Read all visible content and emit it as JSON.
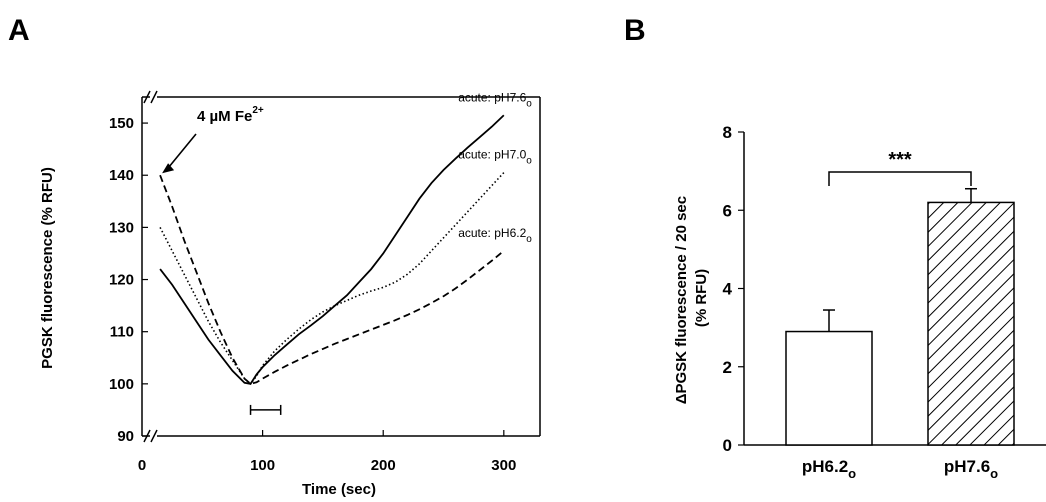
{
  "chart_data": [
    {
      "panel": "A",
      "type": "line",
      "xlabel": "Time (sec)",
      "ylabel": "PGSK fluorescence (% RFU)",
      "xticks": [
        0,
        100,
        200,
        300
      ],
      "yticks": [
        90,
        100,
        110,
        120,
        130,
        140,
        150
      ],
      "xlim": [
        0,
        330
      ],
      "ylim": [
        90,
        155
      ],
      "axis_break": true,
      "annotation": {
        "text": "4 µM Fe",
        "superscript": "2+"
      },
      "series": [
        {
          "label": "acute: pH7.6",
          "subscript": "o",
          "style": "solid",
          "x": [
            15,
            25,
            35,
            45,
            55,
            65,
            75,
            85,
            90,
            95,
            100,
            110,
            120,
            130,
            140,
            150,
            160,
            170,
            180,
            190,
            200,
            210,
            220,
            230,
            240,
            250,
            260,
            270,
            280,
            290,
            300
          ],
          "y": [
            122,
            119,
            115.5,
            112,
            108.5,
            105.5,
            102.5,
            100.2,
            100,
            101.8,
            103.2,
            105.5,
            107.5,
            109.5,
            111.2,
            113.0,
            115.0,
            117.0,
            119.5,
            122.0,
            125.0,
            128.5,
            132.0,
            135.5,
            138.5,
            141.0,
            143.2,
            145.3,
            147.3,
            149.3,
            151.5
          ]
        },
        {
          "label": "acute: pH7.0",
          "subscript": "o",
          "style": "dotted",
          "x": [
            15,
            25,
            35,
            45,
            55,
            65,
            75,
            85,
            90,
            95,
            100,
            110,
            120,
            130,
            140,
            150,
            160,
            170,
            180,
            190,
            200,
            210,
            220,
            230,
            240,
            250,
            260,
            270,
            280,
            290,
            300
          ],
          "y": [
            130,
            125.5,
            121,
            116.5,
            112,
            108,
            104.5,
            101,
            100,
            101.5,
            103.5,
            106.3,
            108.5,
            110.5,
            112.3,
            113.8,
            115.0,
            116.0,
            117.0,
            117.8,
            118.5,
            119.5,
            121.0,
            123.0,
            125.5,
            128.0,
            130.5,
            133.0,
            135.5,
            138.0,
            140.5
          ]
        },
        {
          "label": "acute: pH6.2",
          "subscript": "o",
          "style": "dashed",
          "x": [
            15,
            25,
            35,
            45,
            55,
            65,
            75,
            85,
            90,
            95,
            100,
            110,
            120,
            130,
            140,
            150,
            160,
            170,
            180,
            190,
            200,
            210,
            220,
            230,
            240,
            250,
            260,
            270,
            280,
            290,
            300
          ],
          "y": [
            140,
            134,
            127.5,
            121.5,
            115.5,
            110,
            105,
            101,
            100,
            100.3,
            101.0,
            102.3,
            103.5,
            104.6,
            105.7,
            106.7,
            107.7,
            108.6,
            109.5,
            110.4,
            111.3,
            112.2,
            113.2,
            114.3,
            115.5,
            116.8,
            118.3,
            120.0,
            121.8,
            123.6,
            125.5
          ]
        }
      ],
      "interval_marker": {
        "x_start": 90,
        "x_end": 115,
        "y": 95
      }
    },
    {
      "panel": "B",
      "type": "bar",
      "ylabel_line1": "ΔPGSK fluorescence / 20 sec",
      "ylabel_line2": "(% RFU)",
      "ylim": [
        0,
        8
      ],
      "yticks": [
        0,
        2,
        4,
        6,
        8
      ],
      "categories": [
        {
          "main": "pH6.2",
          "subscript": "o"
        },
        {
          "main": "pH7.6",
          "subscript": "o"
        }
      ],
      "values": [
        2.9,
        6.2
      ],
      "errors": [
        0.55,
        0.35
      ],
      "fills": [
        "open",
        "hatched"
      ],
      "significance": "***"
    }
  ],
  "panel_labels": [
    "A",
    "B"
  ]
}
